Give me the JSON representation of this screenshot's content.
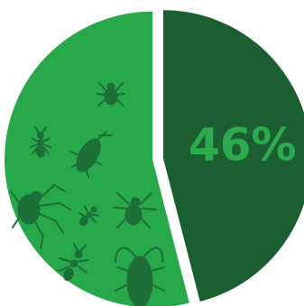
{
  "chart_data": {
    "type": "pie",
    "categories": [
      null,
      null
    ],
    "values": [
      46,
      54
    ],
    "value_labels": [
      "46%",
      null
    ],
    "colors": [
      "#1a5e32",
      "#27a84a"
    ],
    "label_color": "#2eaa4e"
  }
}
